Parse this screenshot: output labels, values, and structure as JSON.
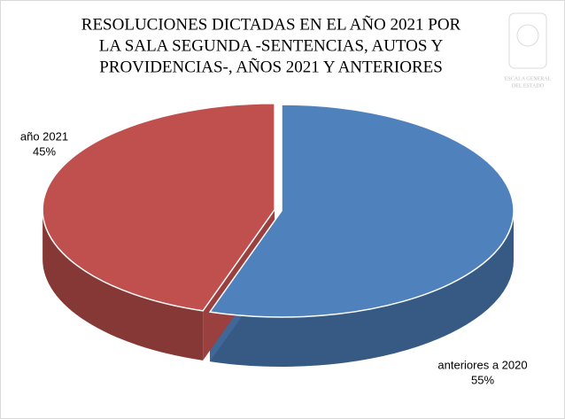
{
  "chart_data": {
    "type": "pie3d",
    "title": [
      "RESOLUCIONES DICTADAS EN EL AÑO 2021 POR",
      "LA SALA SEGUNDA -SENTENCIAS, AUTOS Y",
      "PROVIDENCIAS-, AÑOS 2021 Y ANTERIORES"
    ],
    "logo_text": [
      "ESCALA GENERAL",
      "DEL ESTADO"
    ],
    "categories": [
      "año 2021",
      "anteriores a 2020"
    ],
    "values": [
      45,
      55
    ],
    "value_labels": [
      "45%",
      "55%"
    ],
    "colors": [
      "#c0504d",
      "#4f81bd"
    ]
  }
}
